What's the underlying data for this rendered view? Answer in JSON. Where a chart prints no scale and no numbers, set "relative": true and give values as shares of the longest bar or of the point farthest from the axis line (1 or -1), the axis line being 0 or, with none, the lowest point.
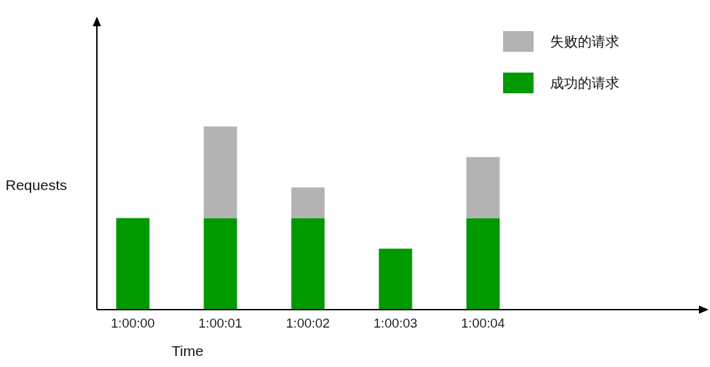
{
  "chart_data": {
    "type": "bar",
    "stacked": true,
    "relative": true,
    "xlabel": "Time",
    "ylabel": "Requests",
    "categories": [
      "1:00:00",
      "1:00:01",
      "1:00:02",
      "1:00:03",
      "1:00:04"
    ],
    "series": [
      {
        "name": "成功的请求",
        "color": "#009900",
        "values": [
          0.5,
          0.5,
          0.5,
          0.333,
          0.5
        ]
      },
      {
        "name": "失败的请求",
        "color": "#b3b3b3",
        "values": [
          0,
          0.5,
          0.167,
          0,
          0.333
        ]
      }
    ],
    "legend": "top right",
    "grid": false
  }
}
